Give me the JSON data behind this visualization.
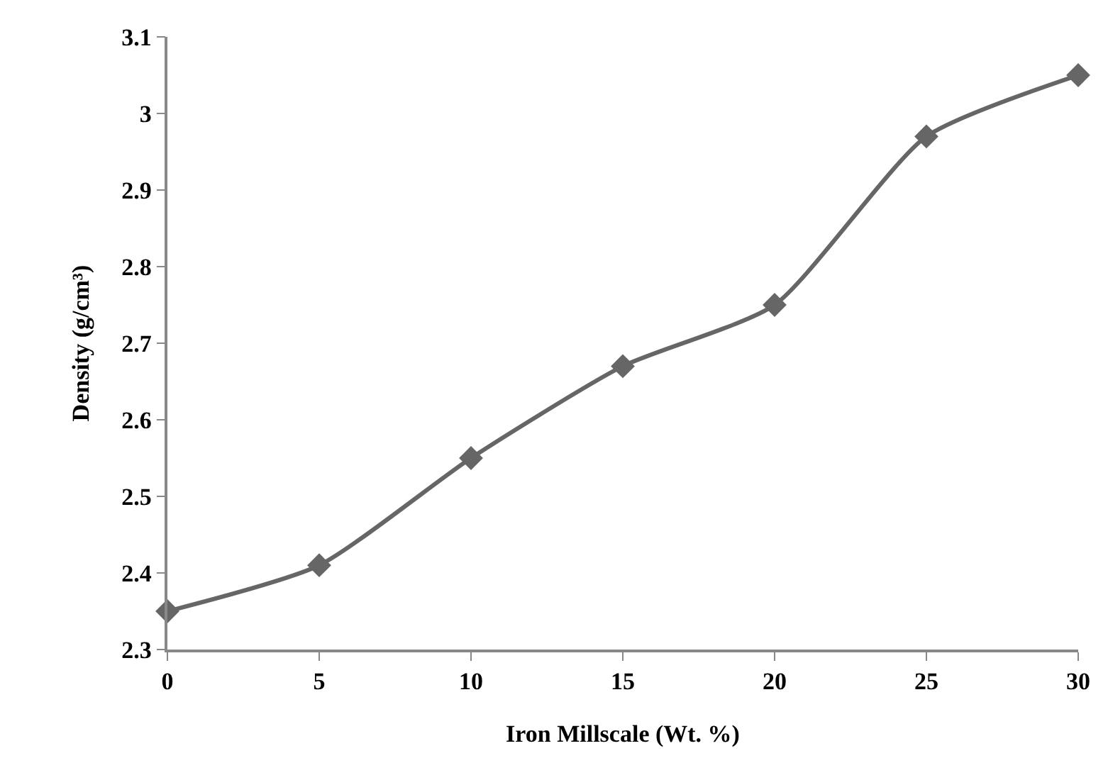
{
  "chart_data": {
    "type": "line",
    "xlabel": "Iron Millscale (Wt. %)",
    "ylabel": "Density (g/cm³)",
    "x": [
      0,
      5,
      10,
      15,
      20,
      25,
      30
    ],
    "series": [
      {
        "color": "#666666",
        "values": [
          2.35,
          2.41,
          2.55,
          2.67,
          2.75,
          2.97,
          3.05
        ]
      }
    ],
    "xlim": [
      0,
      30
    ],
    "xticks": [
      0,
      5,
      10,
      15,
      20,
      25,
      30
    ],
    "ylim": [
      2.3,
      3.1
    ],
    "yticks": [
      2.3,
      2.4,
      2.5,
      2.6,
      2.7,
      2.8,
      2.9,
      3,
      3.1
    ],
    "marker": "diamond",
    "line_style": "solid"
  }
}
